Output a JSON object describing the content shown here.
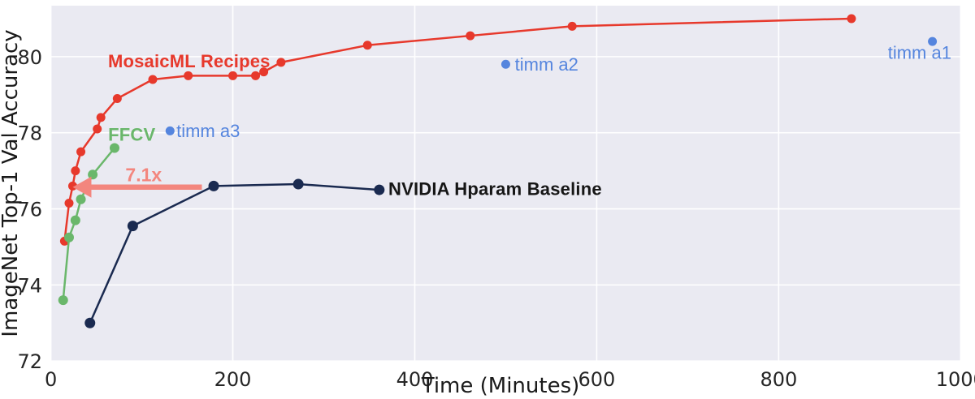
{
  "chart_data": {
    "type": "line",
    "title": "",
    "xlabel": "Time (Minutes)",
    "ylabel": "ImageNet Top-1 Val Accuracy",
    "xlim": [
      0,
      1000
    ],
    "ylim": [
      72,
      81.34
    ],
    "x_ticks": [
      0,
      200,
      400,
      600,
      800,
      1000
    ],
    "y_ticks": [
      72,
      74,
      76,
      78,
      80
    ],
    "grid": true,
    "legend_position": "none",
    "plot_background": "#eaeaf2",
    "gridline_color": "#ffffff",
    "series": [
      {
        "name": "MosaicML Recipes",
        "color": "#e7392c",
        "marker_radius": 5.5,
        "line_width": 2.5,
        "label": {
          "text": "MosaicML Recipes",
          "x": 152,
          "y": 79.88,
          "anchor": "middle",
          "color": "#e7392c"
        },
        "points": [
          [
            15,
            75.15
          ],
          [
            20,
            76.15
          ],
          [
            24,
            76.6
          ],
          [
            27,
            77.0
          ],
          [
            33,
            77.5
          ],
          [
            51,
            78.1
          ],
          [
            55,
            78.4
          ],
          [
            73,
            78.9
          ],
          [
            112,
            79.4
          ],
          [
            151,
            79.5
          ],
          [
            200,
            79.5
          ],
          [
            225,
            79.5
          ],
          [
            234,
            79.6
          ],
          [
            253,
            79.85
          ],
          [
            348,
            80.3
          ],
          [
            461,
            80.55
          ],
          [
            573,
            80.8
          ],
          [
            880,
            81.0
          ]
        ]
      },
      {
        "name": "FFCV",
        "color": "#6ab76b",
        "marker_radius": 6,
        "line_width": 2.5,
        "label": {
          "text": "FFCV",
          "x": 89,
          "y": 77.95,
          "anchor": "middle",
          "color": "#6ab76b"
        },
        "points": [
          [
            13.5,
            73.6
          ],
          [
            20,
            75.25
          ],
          [
            27,
            75.7
          ],
          [
            33,
            76.25
          ],
          [
            46,
            76.9
          ],
          [
            70,
            77.6
          ]
        ]
      },
      {
        "name": "NVIDIA Hparam Baseline",
        "color": "#1a2a50",
        "marker_radius": 6.5,
        "line_width": 2.5,
        "label": {
          "text": "NVIDIA Hparam Baseline",
          "x": 371,
          "y": 76.52,
          "anchor": "start",
          "color": "#161616"
        },
        "points": [
          [
            43,
            73.0
          ],
          [
            90,
            75.55
          ],
          [
            179,
            76.6
          ],
          [
            272,
            76.65
          ],
          [
            361,
            76.5
          ]
        ]
      }
    ],
    "scatter": {
      "name": "timm",
      "color": "#5585de",
      "marker_radius": 5.5,
      "points": [
        {
          "label": "timm a3",
          "x": 131,
          "y": 78.05,
          "label_x": 138,
          "label_y": 78.05,
          "anchor": "start"
        },
        {
          "label": "timm a2",
          "x": 500,
          "y": 79.8,
          "label_x": 510,
          "label_y": 79.79,
          "anchor": "start"
        },
        {
          "label": "timm a1",
          "x": 969,
          "y": 80.4,
          "label_x": 920,
          "label_y": 80.1,
          "anchor": "start"
        }
      ]
    },
    "annotation_arrow": {
      "text": "7.1x",
      "color": "#f3867e",
      "y": 76.57,
      "x_tail": 166,
      "x_tip": 24,
      "label_x": 102,
      "label_y": 76.9
    }
  }
}
